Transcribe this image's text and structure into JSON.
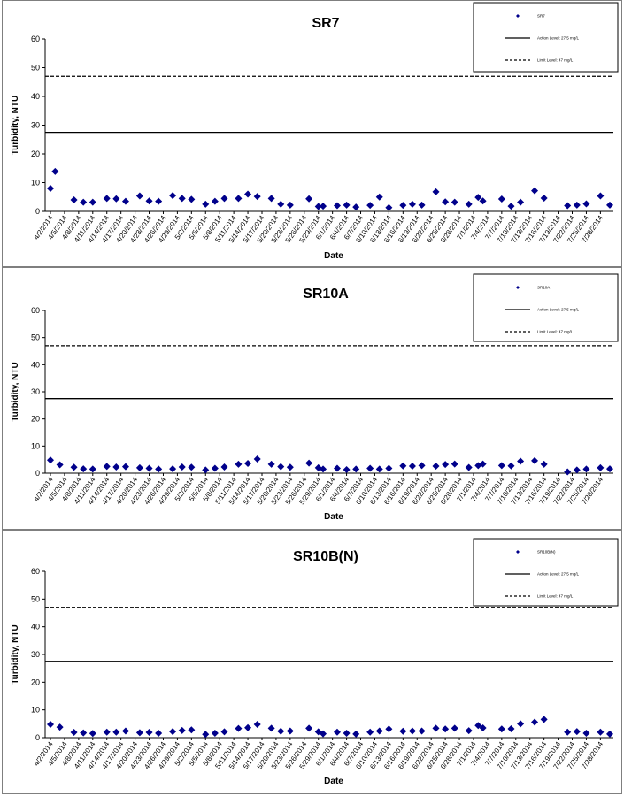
{
  "colors": {
    "marker": "#00008B",
    "line": "#000000",
    "frame": "#7f7f7f"
  },
  "chart_data": [
    {
      "type": "scatter",
      "title": "SR7",
      "xlabel": "Date",
      "ylabel": "Turbidity, NTU",
      "ylim": [
        0,
        60
      ],
      "yticks": [
        0,
        10,
        20,
        30,
        40,
        50,
        60
      ],
      "legend_position": "top-right",
      "series": [
        {
          "name": "SR7",
          "kind": "points",
          "x": [
            "4/2/2014",
            "4/3/2014",
            "4/7/2014",
            "4/9/2014",
            "4/11/2014",
            "4/14/2014",
            "4/16/2014",
            "4/18/2014",
            "4/21/2014",
            "4/23/2014",
            "4/25/2014",
            "4/28/2014",
            "4/30/2014",
            "5/2/2014",
            "5/5/2014",
            "5/7/2014",
            "5/9/2014",
            "5/12/2014",
            "5/14/2014",
            "5/16/2014",
            "5/19/2014",
            "5/21/2014",
            "5/23/2014",
            "5/27/2014",
            "5/29/2014",
            "5/30/2014",
            "6/2/2014",
            "6/4/2014",
            "6/6/2014",
            "6/9/2014",
            "6/11/2014",
            "6/13/2014",
            "6/16/2014",
            "6/18/2014",
            "6/20/2014",
            "6/23/2014",
            "6/25/2014",
            "6/27/2014",
            "6/30/2014",
            "7/2/2014",
            "7/3/2014",
            "7/7/2014",
            "7/9/2014",
            "7/11/2014",
            "7/14/2014",
            "7/16/2014",
            "7/21/2014",
            "7/23/2014",
            "7/25/2014",
            "7/28/2014",
            "7/30/2014"
          ],
          "y": [
            8,
            13.9,
            4,
            3.2,
            3.2,
            4.5,
            4.4,
            3.5,
            5.4,
            3.6,
            3.5,
            5.5,
            4.5,
            4.2,
            2.5,
            3.5,
            4.5,
            4.5,
            6,
            5.2,
            4.5,
            2.5,
            2.2,
            4.4,
            1.7,
            1.8,
            2,
            2.2,
            1.5,
            2.1,
            5,
            1.3,
            2.1,
            2.5,
            2.2,
            6.8,
            3.3,
            3.2,
            2.5,
            4.9,
            3.6,
            4.3,
            1.8,
            3.2,
            7.2,
            4.6,
            2,
            2.2,
            2.6,
            5.4,
            2.2
          ]
        },
        {
          "name": "Action Level: 27.5 mg/L",
          "kind": "hline",
          "value": 27.5,
          "style": "solid"
        },
        {
          "name": "Limit Level: 47 mg/L",
          "kind": "hline",
          "value": 47,
          "style": "dashed"
        }
      ]
    },
    {
      "type": "scatter",
      "title": "SR10A",
      "xlabel": "Date",
      "ylabel": "Turbidity, NTU",
      "ylim": [
        0,
        60
      ],
      "yticks": [
        0,
        10,
        20,
        30,
        40,
        50,
        60
      ],
      "legend_position": "top-right",
      "series": [
        {
          "name": "SR10A",
          "kind": "points",
          "x": [
            "4/2/2014",
            "4/4/2014",
            "4/7/2014",
            "4/9/2014",
            "4/11/2014",
            "4/14/2014",
            "4/16/2014",
            "4/18/2014",
            "4/21/2014",
            "4/23/2014",
            "4/25/2014",
            "4/28/2014",
            "4/30/2014",
            "5/2/2014",
            "5/5/2014",
            "5/7/2014",
            "5/9/2014",
            "5/12/2014",
            "5/14/2014",
            "5/16/2014",
            "5/19/2014",
            "5/21/2014",
            "5/23/2014",
            "5/27/2014",
            "5/29/2014",
            "5/30/2014",
            "6/2/2014",
            "6/4/2014",
            "6/6/2014",
            "6/9/2014",
            "6/11/2014",
            "6/13/2014",
            "6/16/2014",
            "6/18/2014",
            "6/20/2014",
            "6/23/2014",
            "6/25/2014",
            "6/27/2014",
            "6/30/2014",
            "7/2/2014",
            "7/3/2014",
            "7/7/2014",
            "7/9/2014",
            "7/11/2014",
            "7/14/2014",
            "7/16/2014",
            "7/21/2014",
            "7/23/2014",
            "7/25/2014",
            "7/28/2014",
            "7/30/2014"
          ],
          "y": [
            4.8,
            3.1,
            2.2,
            1.6,
            1.5,
            2.5,
            2.3,
            2.4,
            2,
            1.8,
            1.5,
            1.6,
            2.3,
            2.2,
            1.2,
            1.8,
            2.3,
            3.3,
            3.6,
            5.2,
            3.3,
            2.4,
            2.2,
            3.7,
            2,
            1.5,
            1.8,
            1.3,
            1.5,
            1.8,
            1.5,
            1.8,
            2.7,
            2.6,
            2.8,
            2.6,
            3.2,
            3.4,
            2.1,
            2.8,
            3.4,
            2.8,
            2.7,
            4.4,
            4.6,
            3.3,
            0.5,
            1.2,
            1.5,
            2,
            1.6
          ]
        },
        {
          "name": "Action Level: 27.5 mg/L",
          "kind": "hline",
          "value": 27.5,
          "style": "solid"
        },
        {
          "name": "Limit Level: 47 mg/L",
          "kind": "hline",
          "value": 47,
          "style": "dashed"
        }
      ]
    },
    {
      "type": "scatter",
      "title": "SR10B(N)",
      "xlabel": "Date",
      "ylabel": "Turbidity, NTU",
      "ylim": [
        0,
        60
      ],
      "yticks": [
        0,
        10,
        20,
        30,
        40,
        50,
        60
      ],
      "legend_position": "top-right",
      "series": [
        {
          "name": "SR10B(N)",
          "kind": "points",
          "x": [
            "4/2/2014",
            "4/4/2014",
            "4/7/2014",
            "4/9/2014",
            "4/11/2014",
            "4/14/2014",
            "4/16/2014",
            "4/18/2014",
            "4/21/2014",
            "4/23/2014",
            "4/25/2014",
            "4/28/2014",
            "4/30/2014",
            "5/2/2014",
            "5/5/2014",
            "5/7/2014",
            "5/9/2014",
            "5/12/2014",
            "5/14/2014",
            "5/16/2014",
            "5/19/2014",
            "5/21/2014",
            "5/23/2014",
            "5/27/2014",
            "5/29/2014",
            "5/30/2014",
            "6/2/2014",
            "6/4/2014",
            "6/6/2014",
            "6/9/2014",
            "6/11/2014",
            "6/13/2014",
            "6/16/2014",
            "6/18/2014",
            "6/20/2014",
            "6/23/2014",
            "6/25/2014",
            "6/27/2014",
            "6/30/2014",
            "7/2/2014",
            "7/3/2014",
            "7/7/2014",
            "7/9/2014",
            "7/11/2014",
            "7/14/2014",
            "7/16/2014",
            "7/21/2014",
            "7/23/2014",
            "7/25/2014",
            "7/28/2014",
            "7/30/2014"
          ],
          "y": [
            4.8,
            3.8,
            1.9,
            1.7,
            1.5,
            2,
            2,
            2.4,
            1.8,
            1.9,
            1.6,
            2.2,
            2.6,
            2.8,
            1.2,
            1.6,
            2.1,
            3.3,
            3.6,
            4.8,
            3.4,
            2.3,
            2.4,
            3.4,
            2.1,
            1.4,
            2,
            1.6,
            1.3,
            2,
            2.4,
            3.1,
            2.3,
            2.4,
            2.4,
            3.4,
            3.1,
            3.4,
            2.5,
            4.4,
            3.5,
            3.1,
            3.2,
            5,
            5.6,
            6.6,
            2,
            2.2,
            1.6,
            2,
            1.3
          ]
        },
        {
          "name": "Action Level: 27.5 mg/L",
          "kind": "hline",
          "value": 27.5,
          "style": "solid"
        },
        {
          "name": "Limit Level: 47 mg/L",
          "kind": "hline",
          "value": 47,
          "style": "dashed"
        }
      ]
    }
  ],
  "x_axis": {
    "start": "4/2/2014",
    "end": "7/30/2014",
    "tick_labels": [
      "4/2/2014",
      "4/5/2014",
      "4/8/2014",
      "4/11/2014",
      "4/14/2014",
      "4/17/2014",
      "4/20/2014",
      "4/23/2014",
      "4/26/2014",
      "4/29/2014",
      "5/2/2014",
      "5/5/2014",
      "5/8/2014",
      "5/11/2014",
      "5/14/2014",
      "5/17/2014",
      "5/20/2014",
      "5/23/2014",
      "5/26/2014",
      "5/29/2014",
      "6/1/2014",
      "6/4/2014",
      "6/7/2014",
      "6/10/2014",
      "6/13/2014",
      "6/16/2014",
      "6/19/2014",
      "6/22/2014",
      "6/25/2014",
      "6/28/2014",
      "7/1/2014",
      "7/4/2014",
      "7/7/2014",
      "7/10/2014",
      "7/13/2014",
      "7/16/2014",
      "7/19/2014",
      "7/22/2014",
      "7/25/2014",
      "7/28/2014"
    ]
  }
}
